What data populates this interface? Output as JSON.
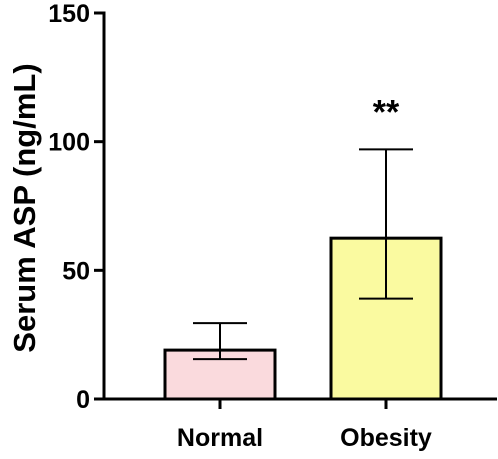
{
  "chart_data": {
    "type": "bar",
    "title": "",
    "xlabel": "",
    "ylabel": "Serum ASP (ng/mL)",
    "ylim": [
      0,
      150
    ],
    "yticks": [
      0,
      50,
      100,
      150
    ],
    "grid": false,
    "categories": [
      "Normal",
      "Obesity"
    ],
    "values": [
      19,
      62.5
    ],
    "error_upper": [
      29.5,
      97
    ],
    "error_lower": [
      15.5,
      39
    ],
    "bar_colors": [
      "#fadadd",
      "#fafaa0"
    ],
    "annotations": [
      {
        "category": "Obesity",
        "text": "**"
      }
    ]
  }
}
